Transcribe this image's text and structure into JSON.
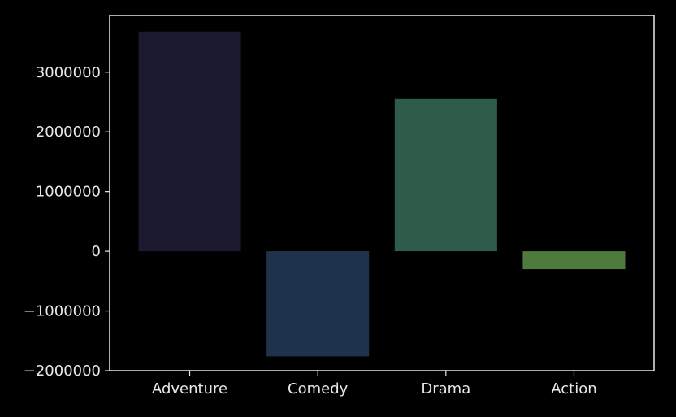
{
  "chart_data": {
    "type": "bar",
    "categories": [
      "Adventure",
      "Comedy",
      "Drama",
      "Action"
    ],
    "values": [
      3680000,
      -1760000,
      2550000,
      -300000
    ],
    "colors": [
      "#1c1a2e",
      "#1f324c",
      "#2e5b4a",
      "#4e7a3e"
    ],
    "title": "",
    "xlabel": "",
    "ylabel": "",
    "ylim": [
      -2000000,
      3950000
    ],
    "yticks": [
      -2000000,
      -1000000,
      0,
      1000000,
      2000000,
      3000000
    ],
    "ytick_labels": [
      "−2000000",
      "−1000000",
      "0",
      "1000000",
      "2000000",
      "3000000"
    ],
    "grid": false,
    "legend": "none"
  },
  "style": {
    "background": "#000000",
    "axis_color": "#e8e8e8",
    "text_color": "#e8e8e8"
  }
}
